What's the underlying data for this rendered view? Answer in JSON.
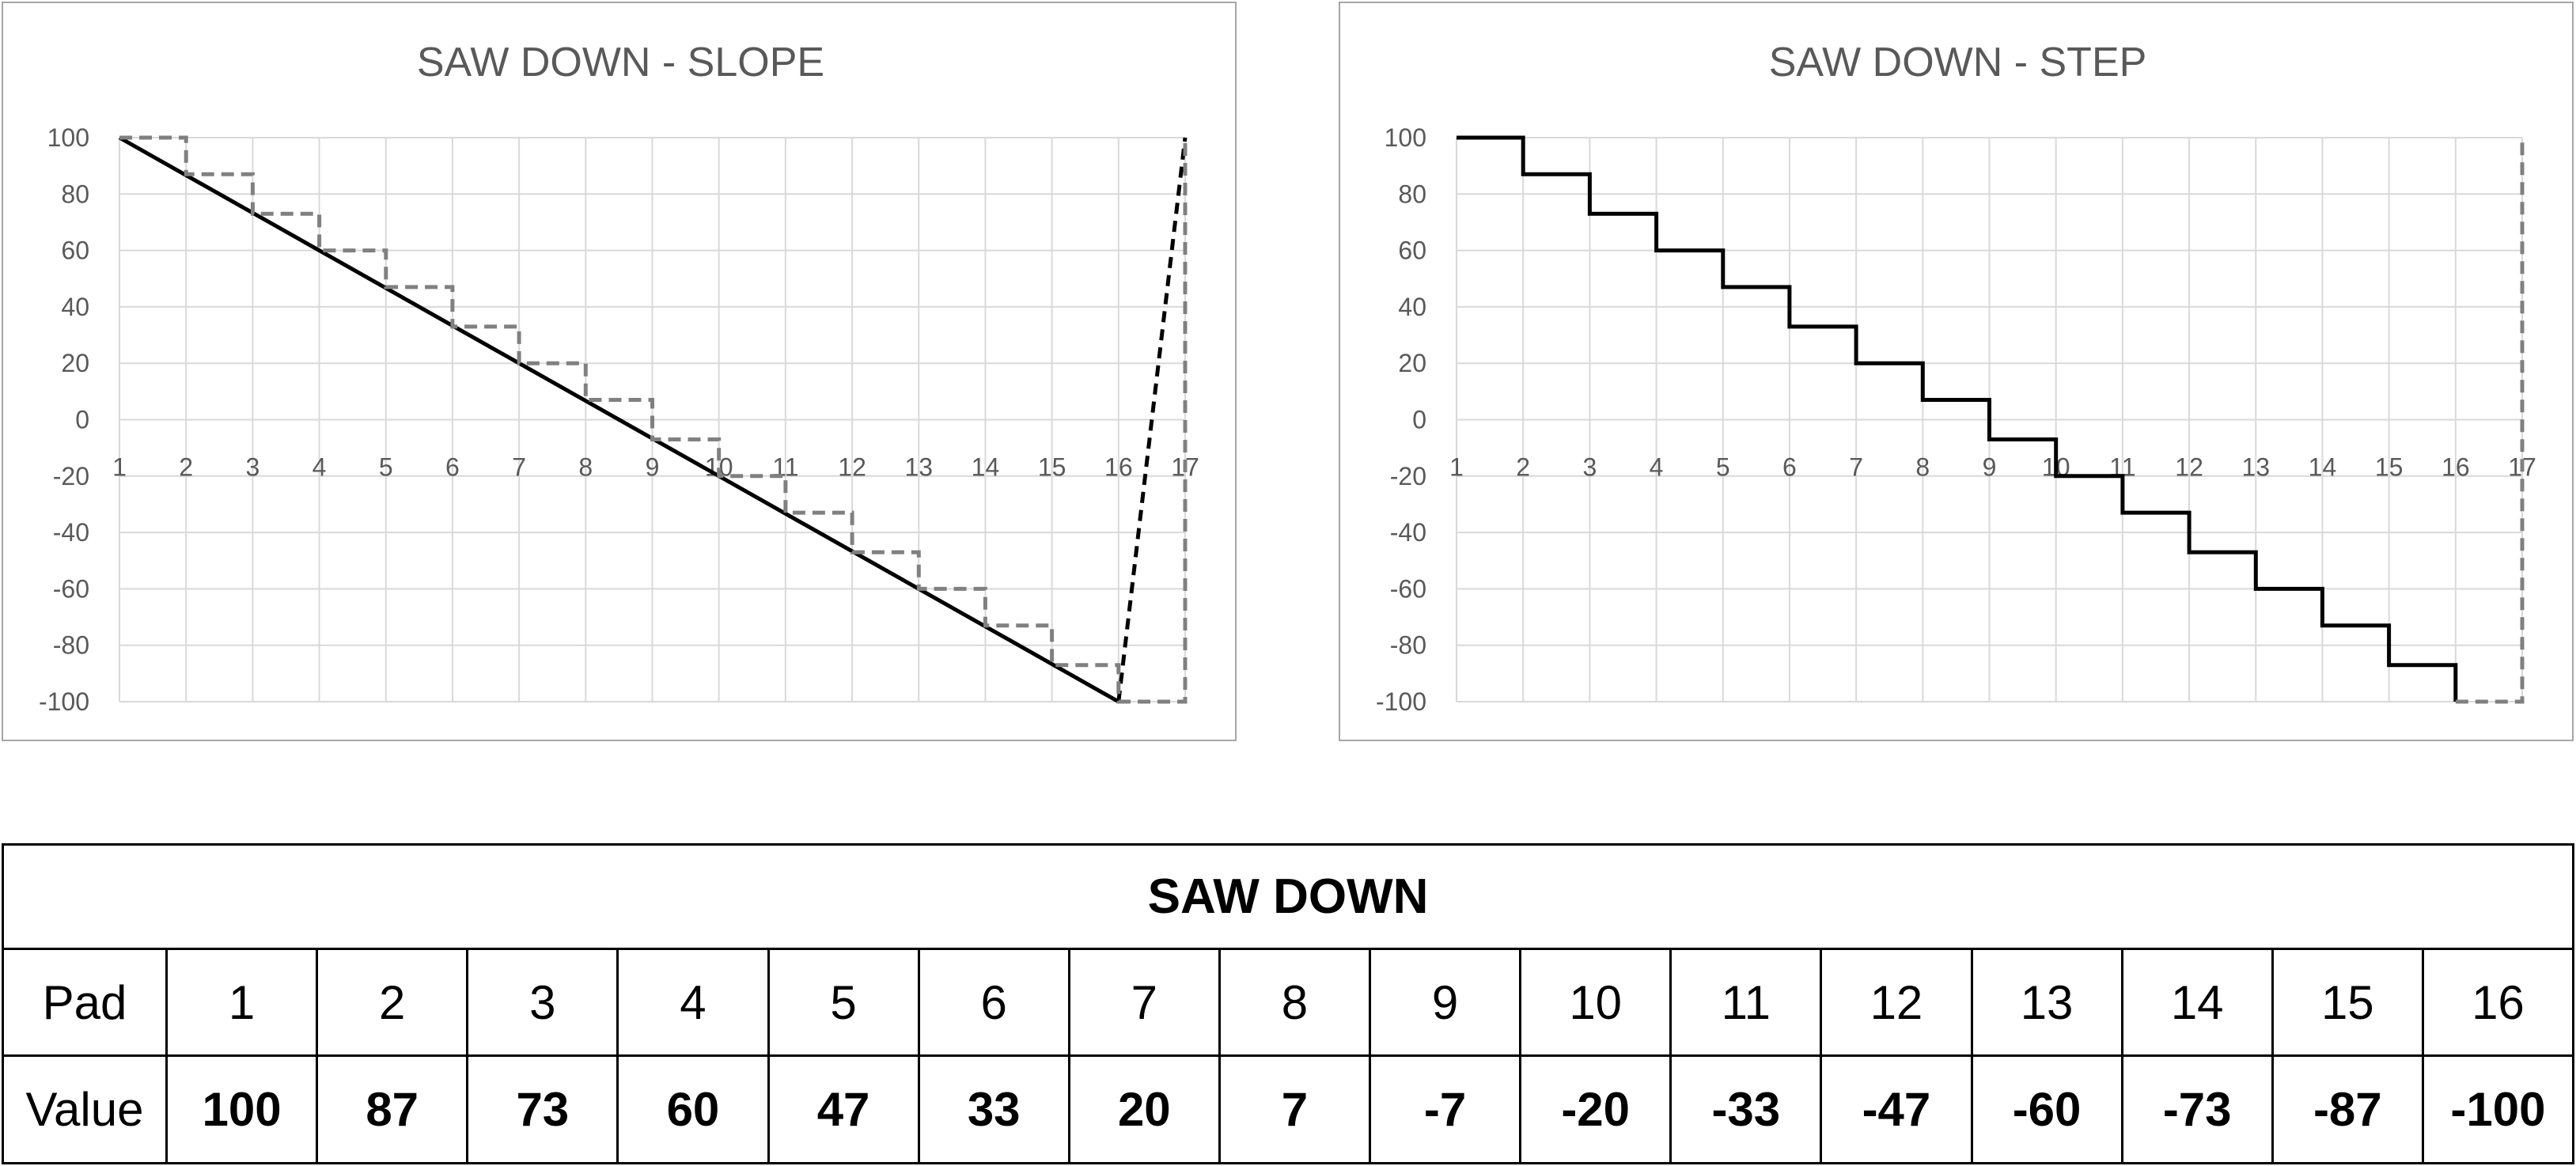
{
  "charts": {
    "chart_data": [
      {
        "type": "line",
        "title": "SAW DOWN - SLOPE",
        "x_ticks": [
          "1",
          "2",
          "3",
          "4",
          "5",
          "6",
          "7",
          "8",
          "9",
          "10",
          "11",
          "12",
          "13",
          "14",
          "15",
          "16",
          "17"
        ],
        "y_ticks": [
          "100",
          "80",
          "60",
          "40",
          "20",
          "0",
          "-20",
          "-40",
          "-60",
          "-80",
          "-100"
        ],
        "xlim": [
          1,
          17
        ],
        "ylim": [
          -100,
          100
        ],
        "grid": true,
        "series": [
          {
            "style": "solid-black",
            "x": [
              1,
              16
            ],
            "y": [
              100,
              -100
            ]
          },
          {
            "style": "dashed-black",
            "x": [
              16,
              17
            ],
            "y": [
              -100,
              100
            ]
          },
          {
            "style": "dashed-gray-step",
            "x": [
              1,
              2,
              2,
              3,
              3,
              4,
              4,
              5,
              5,
              6,
              6,
              7,
              7,
              8,
              8,
              9,
              9,
              10,
              10,
              11,
              11,
              12,
              12,
              13,
              13,
              14,
              14,
              15,
              15,
              16,
              16,
              17,
              17
            ],
            "y": [
              100,
              100,
              87,
              87,
              73,
              73,
              60,
              60,
              47,
              47,
              33,
              33,
              20,
              20,
              7,
              7,
              -7,
              -7,
              -20,
              -20,
              -33,
              -33,
              -47,
              -47,
              -60,
              -60,
              -73,
              -73,
              -87,
              -87,
              -100,
              -100,
              100
            ]
          }
        ]
      },
      {
        "type": "line",
        "title": "SAW DOWN - STEP",
        "x_ticks": [
          "1",
          "2",
          "3",
          "4",
          "5",
          "6",
          "7",
          "8",
          "9",
          "10",
          "11",
          "12",
          "13",
          "14",
          "15",
          "16",
          "17"
        ],
        "y_ticks": [
          "100",
          "80",
          "60",
          "40",
          "20",
          "0",
          "-20",
          "-40",
          "-60",
          "-80",
          "-100"
        ],
        "xlim": [
          1,
          17
        ],
        "ylim": [
          -100,
          100
        ],
        "grid": true,
        "series": [
          {
            "style": "solid-black-step",
            "x": [
              1,
              2,
              2,
              3,
              3,
              4,
              4,
              5,
              5,
              6,
              6,
              7,
              7,
              8,
              8,
              9,
              9,
              10,
              10,
              11,
              11,
              12,
              12,
              13,
              13,
              14,
              14,
              15,
              15,
              16,
              16
            ],
            "y": [
              100,
              100,
              87,
              87,
              73,
              73,
              60,
              60,
              47,
              47,
              33,
              33,
              20,
              20,
              7,
              7,
              -7,
              -7,
              -20,
              -20,
              -33,
              -33,
              -47,
              -47,
              -60,
              -60,
              -73,
              -73,
              -87,
              -87,
              -100
            ]
          },
          {
            "style": "dashed-gray-step",
            "x": [
              16,
              17,
              17
            ],
            "y": [
              -100,
              -100,
              100
            ]
          }
        ]
      }
    ]
  },
  "colors": {
    "grid": "#d9d9d9",
    "solid_line": "#000000",
    "dashed_gray": "#808080",
    "label_text": "#595959"
  },
  "table": {
    "title": "SAW DOWN",
    "pad_label": "Pad",
    "value_label": "Value",
    "pads": [
      "1",
      "2",
      "3",
      "4",
      "5",
      "6",
      "7",
      "8",
      "9",
      "10",
      "11",
      "12",
      "13",
      "14",
      "15",
      "16"
    ],
    "values": [
      "100",
      "87",
      "73",
      "60",
      "47",
      "33",
      "20",
      "7",
      "-7",
      "-20",
      "-33",
      "-47",
      "-60",
      "-73",
      "-87",
      "-100"
    ]
  }
}
